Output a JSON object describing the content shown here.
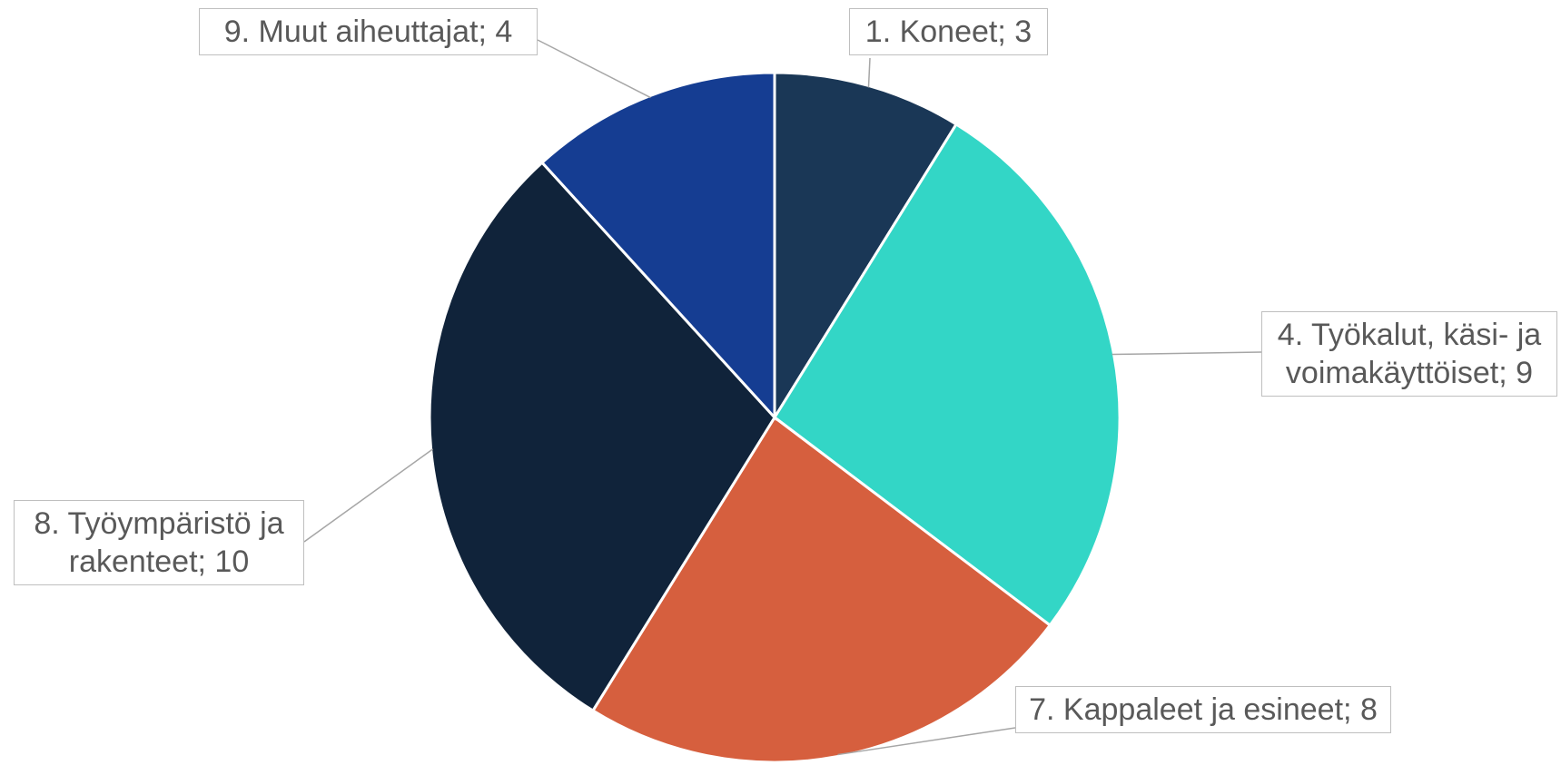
{
  "chart_data": {
    "type": "pie",
    "categories": [
      "1. Koneet",
      "4. Työkalut, käsi- ja voimakäyttöiset",
      "7. Kappaleet ja esineet",
      "8. Työympäristö ja rakenteet",
      "9. Muut aiheuttajat"
    ],
    "values": [
      3,
      9,
      8,
      10,
      4
    ],
    "colors": [
      "#1a3756",
      "#33d6c6",
      "#d65f3e",
      "#10233a",
      "#153d92"
    ],
    "label_separator": "; "
  }
}
